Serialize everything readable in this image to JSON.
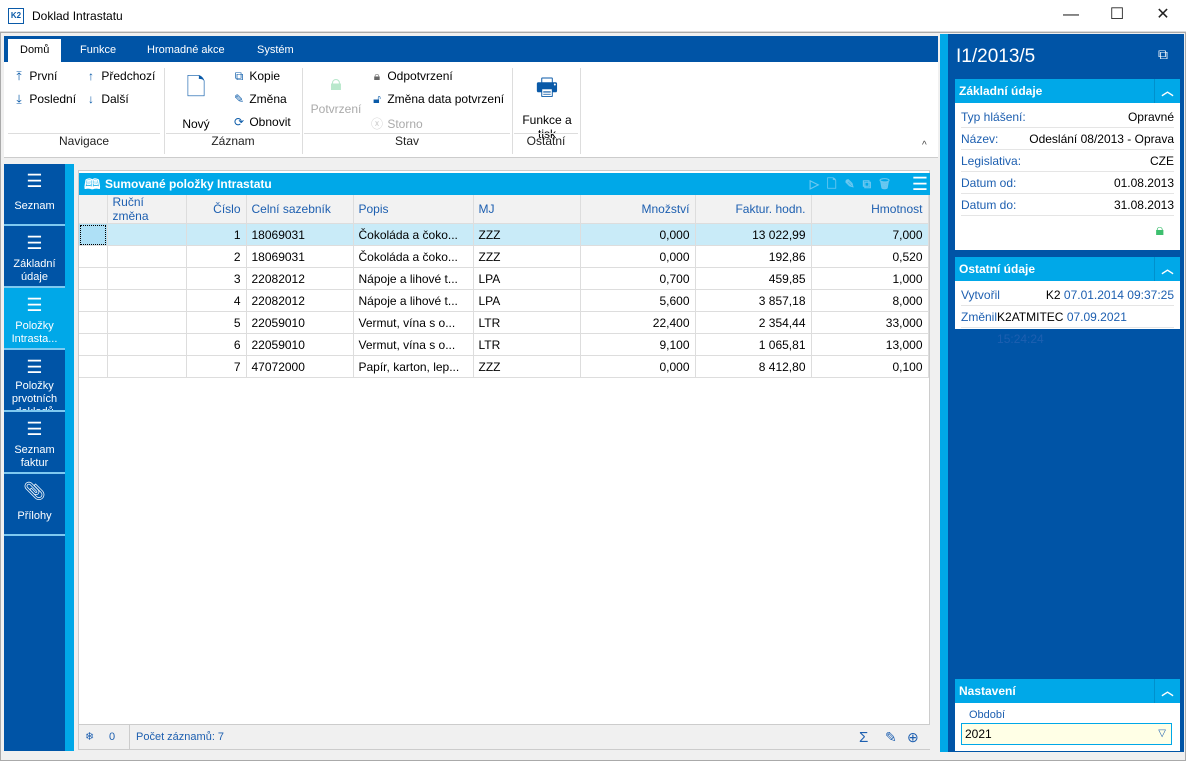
{
  "window": {
    "title": "Doklad Intrastatu",
    "logo": "K2",
    "controls": [
      "minimize",
      "maximize",
      "close"
    ]
  },
  "ribbon": {
    "tabs": [
      {
        "label": "Domů",
        "active": true
      },
      {
        "label": "Funkce"
      },
      {
        "label": "Hromadné akce"
      },
      {
        "label": "Systém"
      }
    ],
    "navigace": {
      "label": "Navigace",
      "first": "První",
      "last": "Poslední",
      "prev": "Předchozí",
      "next": "Další"
    },
    "zaznam": {
      "label": "Záznam",
      "new": "Nový",
      "copy": "Kopie",
      "edit": "Změna",
      "refresh": "Obnovit"
    },
    "stav": {
      "label": "Stav",
      "confirm": "Potvrzení",
      "unconfirm": "Odpotvrzení",
      "change_date": "Změna data potvrzení",
      "cancel": "Storno"
    },
    "ostatni": {
      "label": "Ostatní",
      "print": "Funkce a tisk"
    }
  },
  "leftnav": [
    {
      "label": "Seznam",
      "icon": "list-icon"
    },
    {
      "label": "Základní údaje",
      "icon": "bullet-list-icon"
    },
    {
      "label": "Položky Intrasta...",
      "icon": "list-icon",
      "active": true
    },
    {
      "label": "Položky prvotních dokladů",
      "icon": "list-icon"
    },
    {
      "label": "Seznam faktur",
      "icon": "list-icon"
    },
    {
      "label": "Přílohy",
      "icon": "paperclip-icon"
    }
  ],
  "grid": {
    "title": "Sumované položky Intrastatu",
    "columns": [
      "",
      "Ruční změna",
      "Číslo",
      "Celní sazebník",
      "Popis",
      "MJ",
      "Množství",
      "Faktur. hodn.",
      "Hmotnost"
    ],
    "rows": [
      [
        "",
        "",
        "1",
        "18069031",
        "Čokoláda a čoko...",
        "ZZZ",
        "0,000",
        "13 022,99",
        "7,000"
      ],
      [
        "",
        "",
        "2",
        "18069031",
        "Čokoláda a čoko...",
        "ZZZ",
        "0,000",
        "192,86",
        "0,520"
      ],
      [
        "",
        "",
        "3",
        "22082012",
        "Nápoje a lihové t...",
        "LPA",
        "0,700",
        "459,85",
        "1,000"
      ],
      [
        "",
        "",
        "4",
        "22082012",
        "Nápoje a lihové t...",
        "LPA",
        "5,600",
        "3 857,18",
        "8,000"
      ],
      [
        "",
        "",
        "5",
        "22059010",
        "Vermut, vína s o...",
        "LTR",
        "22,400",
        "2 354,44",
        "33,000"
      ],
      [
        "",
        "",
        "6",
        "22059010",
        "Vermut, vína s o...",
        "LTR",
        "9,100",
        "1 065,81",
        "13,000"
      ],
      [
        "",
        "",
        "7",
        "47072000",
        "Papír, karton, lep...",
        "ZZZ",
        "0,000",
        "8 412,80",
        "0,100"
      ]
    ],
    "status": {
      "filter_count": "0",
      "record_count": "Počet záznamů: 7"
    }
  },
  "right": {
    "doc_id": "I1/2013/5",
    "zakladni": {
      "title": "Základní údaje",
      "fields": [
        {
          "label": "Typ hlášení:",
          "value": "Opravné"
        },
        {
          "label": "Název:",
          "value": "Odeslání 08/2013 - Oprava"
        },
        {
          "label": "Legislativa:",
          "value": "CZE"
        },
        {
          "label": "Datum od:",
          "value": "01.08.2013"
        },
        {
          "label": "Datum do:",
          "value": "31.08.2013"
        }
      ]
    },
    "ostatni": {
      "title": "Ostatní údaje",
      "created_label": "Vytvořil",
      "created_user": "K2",
      "created_at": "07.01.2014 09:37:25",
      "changed_label": "Změnil",
      "changed_user": "K2ATMITEC",
      "changed_at": "07.09.2021 15:24:24"
    },
    "nastaveni": {
      "title": "Nastavení",
      "period_label": "Období",
      "period_value": "2021"
    }
  },
  "colors": {
    "dark_blue": "#0054a6",
    "light_blue": "#00a8e8",
    "selected_row": "#c9ebf8",
    "lock_green": "#3dbf6e"
  }
}
